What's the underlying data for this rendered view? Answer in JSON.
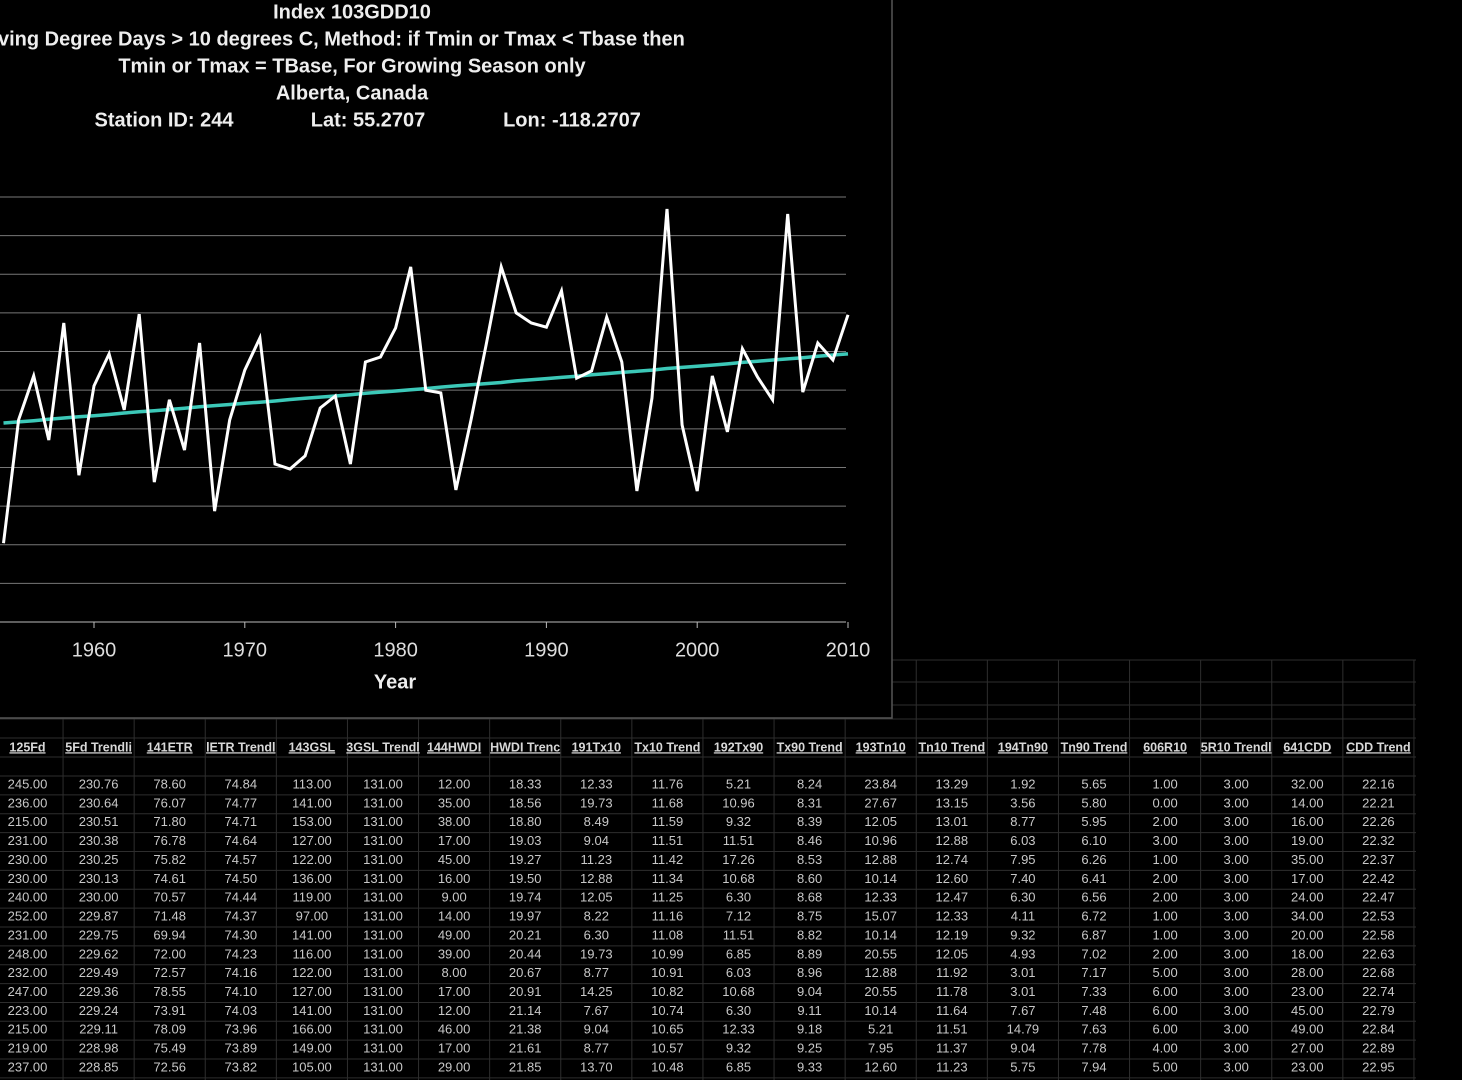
{
  "chart_data": {
    "type": "line",
    "title": "Index 103GDD10",
    "subtitle_lines": [
      "ving Degree Days > 10 degrees C, Method: if Tmin or Tmax < Tbase then",
      "Tmin or Tmax = TBase, For Growing Season only",
      "Alberta, Canada"
    ],
    "station": "Station ID: 244",
    "lat": "Lat: 55.2707",
    "lon": "Lon: -118.2707",
    "xlabel": "Year",
    "x": [
      1954,
      1955,
      1956,
      1957,
      1958,
      1959,
      1960,
      1961,
      1962,
      1963,
      1964,
      1965,
      1966,
      1967,
      1968,
      1969,
      1970,
      1971,
      1972,
      1973,
      1974,
      1975,
      1976,
      1977,
      1978,
      1979,
      1980,
      1981,
      1982,
      1983,
      1984,
      1985,
      1986,
      1987,
      1988,
      1989,
      1990,
      1991,
      1992,
      1993,
      1994,
      1995,
      1996,
      1997,
      1998,
      1999,
      2000,
      2001,
      2002,
      2003,
      2004,
      2005,
      2006,
      2007,
      2008,
      2009,
      2010
    ],
    "series": [
      {
        "color": "#ffffff",
        "values": [
          204,
          523,
          637,
          471,
          774,
          380,
          611,
          694,
          549,
          797,
          362,
          575,
          445,
          722,
          287,
          523,
          652,
          735,
          409,
          396,
          430,
          554,
          585,
          409,
          673,
          686,
          761,
          919,
          600,
          593,
          342,
          523,
          717,
          919,
          800,
          774,
          763,
          857,
          631,
          650,
          789,
          673,
          339,
          580,
          1069,
          510,
          339,
          637,
          492,
          707,
          634,
          575,
          1056,
          595,
          722,
          678,
          795
        ]
      },
      {
        "color": "#3cc8b8",
        "values": [
          515,
          518,
          521,
          525,
          528,
          531,
          534,
          537,
          541,
          544,
          547,
          550,
          553,
          557,
          560,
          563,
          566,
          569,
          572,
          576,
          579,
          582,
          585,
          588,
          592,
          595,
          598,
          601,
          604,
          608,
          611,
          614,
          617,
          620,
          624,
          627,
          630,
          633,
          636,
          640,
          643,
          646,
          649,
          652,
          656,
          659,
          662,
          665,
          668,
          672,
          675,
          678,
          681,
          684,
          688,
          691,
          694
        ]
      }
    ],
    "xlim": [
      1950,
      2010
    ],
    "xticks": [
      1960,
      1970,
      1980,
      1990,
      2000,
      2010
    ],
    "ylim": [
      0,
      1100
    ],
    "yticks": [
      0,
      100,
      200,
      300,
      400,
      500,
      600,
      700,
      800,
      900,
      1000,
      1100
    ],
    "grid": true
  },
  "table": {
    "headers": [
      "125Fd",
      "5Fd Trendli",
      "141ETR",
      "lETR Trendl",
      "143GSL",
      "3GSL Trendl",
      "144HWDI",
      "HWDI Trenc",
      "191Tx10",
      "Tx10 Trend",
      "192Tx90",
      "Tx90 Trend",
      "193Tn10",
      "Tn10 Trend",
      "194Tn90",
      "Tn90 Trend",
      "606R10",
      "5R10 Trendl",
      "641CDD",
      "CDD Trend"
    ],
    "rows": [
      [
        "245.00",
        "230.76",
        "78.60",
        "74.84",
        "113.00",
        "131.00",
        "12.00",
        "18.33",
        "12.33",
        "11.76",
        "5.21",
        "8.24",
        "23.84",
        "13.29",
        "1.92",
        "5.65",
        "1.00",
        "3.00",
        "32.00",
        "22.16"
      ],
      [
        "236.00",
        "230.64",
        "76.07",
        "74.77",
        "141.00",
        "131.00",
        "35.00",
        "18.56",
        "19.73",
        "11.68",
        "10.96",
        "8.31",
        "27.67",
        "13.15",
        "3.56",
        "5.80",
        "0.00",
        "3.00",
        "14.00",
        "22.21"
      ],
      [
        "215.00",
        "230.51",
        "71.80",
        "74.71",
        "153.00",
        "131.00",
        "38.00",
        "18.80",
        "8.49",
        "11.59",
        "9.32",
        "8.39",
        "12.05",
        "13.01",
        "8.77",
        "5.95",
        "2.00",
        "3.00",
        "16.00",
        "22.26"
      ],
      [
        "231.00",
        "230.38",
        "76.78",
        "74.64",
        "127.00",
        "131.00",
        "17.00",
        "19.03",
        "9.04",
        "11.51",
        "11.51",
        "8.46",
        "10.96",
        "12.88",
        "6.03",
        "6.10",
        "3.00",
        "3.00",
        "19.00",
        "22.32"
      ],
      [
        "230.00",
        "230.25",
        "75.82",
        "74.57",
        "122.00",
        "131.00",
        "45.00",
        "19.27",
        "11.23",
        "11.42",
        "17.26",
        "8.53",
        "12.88",
        "12.74",
        "7.95",
        "6.26",
        "1.00",
        "3.00",
        "35.00",
        "22.37"
      ],
      [
        "230.00",
        "230.13",
        "74.61",
        "74.50",
        "136.00",
        "131.00",
        "16.00",
        "19.50",
        "12.88",
        "11.34",
        "10.68",
        "8.60",
        "10.14",
        "12.60",
        "7.40",
        "6.41",
        "2.00",
        "3.00",
        "17.00",
        "22.42"
      ],
      [
        "240.00",
        "230.00",
        "70.57",
        "74.44",
        "119.00",
        "131.00",
        "9.00",
        "19.74",
        "12.05",
        "11.25",
        "6.30",
        "8.68",
        "12.33",
        "12.47",
        "6.30",
        "6.56",
        "2.00",
        "3.00",
        "24.00",
        "22.47"
      ],
      [
        "252.00",
        "229.87",
        "71.48",
        "74.37",
        "97.00",
        "131.00",
        "14.00",
        "19.97",
        "8.22",
        "11.16",
        "7.12",
        "8.75",
        "15.07",
        "12.33",
        "4.11",
        "6.72",
        "1.00",
        "3.00",
        "34.00",
        "22.53"
      ],
      [
        "231.00",
        "229.75",
        "69.94",
        "74.30",
        "141.00",
        "131.00",
        "49.00",
        "20.21",
        "6.30",
        "11.08",
        "11.51",
        "8.82",
        "10.14",
        "12.19",
        "9.32",
        "6.87",
        "1.00",
        "3.00",
        "20.00",
        "22.58"
      ],
      [
        "248.00",
        "229.62",
        "72.00",
        "74.23",
        "116.00",
        "131.00",
        "39.00",
        "20.44",
        "19.73",
        "10.99",
        "6.85",
        "8.89",
        "20.55",
        "12.05",
        "4.93",
        "7.02",
        "2.00",
        "3.00",
        "18.00",
        "22.63"
      ],
      [
        "232.00",
        "229.49",
        "72.57",
        "74.16",
        "122.00",
        "131.00",
        "8.00",
        "20.67",
        "8.77",
        "10.91",
        "6.03",
        "8.96",
        "12.88",
        "11.92",
        "3.01",
        "7.17",
        "5.00",
        "3.00",
        "28.00",
        "22.68"
      ],
      [
        "247.00",
        "229.36",
        "78.55",
        "74.10",
        "127.00",
        "131.00",
        "17.00",
        "20.91",
        "14.25",
        "10.82",
        "10.68",
        "9.04",
        "20.55",
        "11.78",
        "3.01",
        "7.33",
        "6.00",
        "3.00",
        "23.00",
        "22.74"
      ],
      [
        "223.00",
        "229.24",
        "73.91",
        "74.03",
        "141.00",
        "131.00",
        "12.00",
        "21.14",
        "7.67",
        "10.74",
        "6.30",
        "9.11",
        "10.14",
        "11.64",
        "7.67",
        "7.48",
        "6.00",
        "3.00",
        "45.00",
        "22.79"
      ],
      [
        "215.00",
        "229.11",
        "78.09",
        "73.96",
        "166.00",
        "131.00",
        "46.00",
        "21.38",
        "9.04",
        "10.65",
        "12.33",
        "9.18",
        "5.21",
        "11.51",
        "14.79",
        "7.63",
        "6.00",
        "3.00",
        "49.00",
        "22.84"
      ],
      [
        "219.00",
        "228.98",
        "75.49",
        "73.89",
        "149.00",
        "131.00",
        "17.00",
        "21.61",
        "8.77",
        "10.57",
        "9.32",
        "9.25",
        "7.95",
        "11.37",
        "9.04",
        "7.78",
        "4.00",
        "3.00",
        "27.00",
        "22.89"
      ],
      [
        "237.00",
        "228.85",
        "72.56",
        "73.82",
        "105.00",
        "131.00",
        "29.00",
        "21.85",
        "13.70",
        "10.48",
        "6.85",
        "9.33",
        "12.60",
        "11.23",
        "5.75",
        "7.94",
        "5.00",
        "3.00",
        "23.00",
        "22.95"
      ]
    ]
  }
}
